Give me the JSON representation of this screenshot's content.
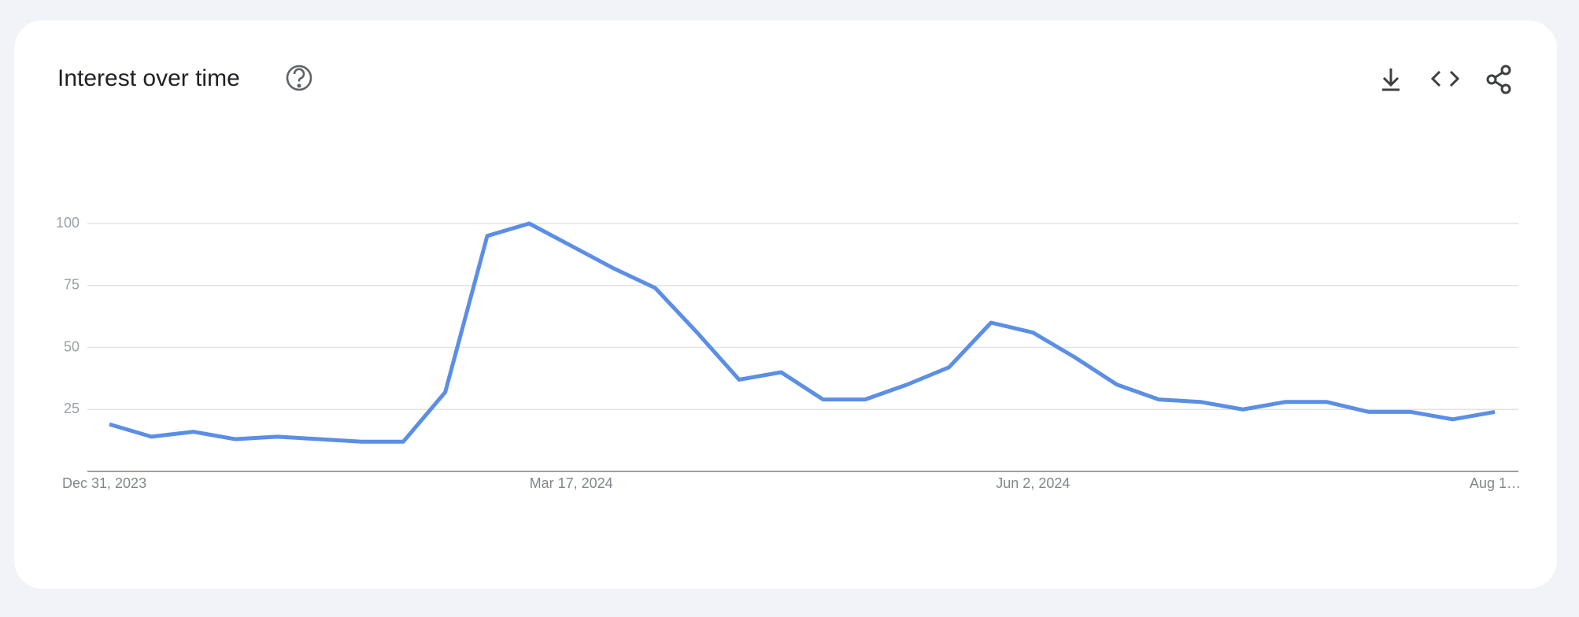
{
  "chart_data": {
    "type": "line",
    "title": "Interest over time",
    "categories": [
      "Dec 31, 2023",
      null,
      null,
      null,
      null,
      null,
      null,
      null,
      null,
      null,
      null,
      "Mar 17, 2024",
      null,
      null,
      null,
      null,
      null,
      null,
      null,
      null,
      null,
      null,
      "Jun 2, 2024",
      null,
      null,
      null,
      null,
      null,
      null,
      null,
      null,
      null,
      null,
      "Aug 1…"
    ],
    "series": [
      {
        "color": "#5b8ee6",
        "values": [
          19,
          14,
          16,
          13,
          14,
          13,
          12,
          12,
          32,
          95,
          100,
          91,
          82,
          74,
          56,
          37,
          40,
          29,
          29,
          35,
          42,
          60,
          56,
          46,
          35,
          29,
          28,
          25,
          28,
          28,
          24,
          24,
          21,
          24
        ]
      }
    ],
    "ylim": [
      0,
      100
    ],
    "yticks": [
      25,
      50,
      75,
      100
    ],
    "grid": true
  }
}
